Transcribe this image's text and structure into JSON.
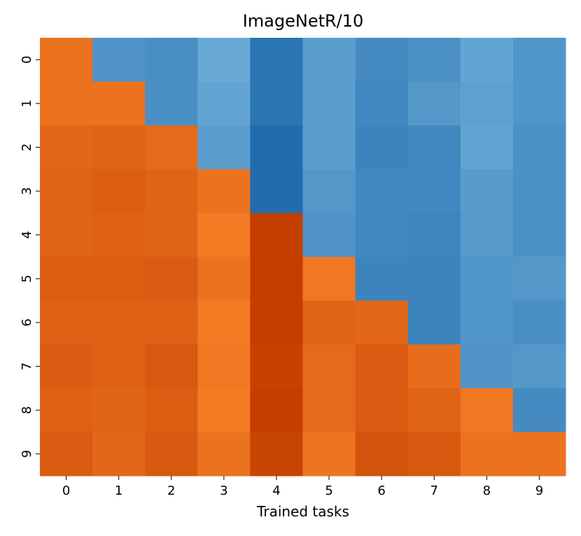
{
  "chart_data": {
    "type": "heatmap",
    "title": "ImageNetR/10",
    "xlabel": "Trained tasks",
    "ylabel": "",
    "x_categories": [
      "0",
      "1",
      "2",
      "3",
      "4",
      "5",
      "6",
      "7",
      "8",
      "9"
    ],
    "y_categories": [
      "0",
      "1",
      "2",
      "3",
      "4",
      "5",
      "6",
      "7",
      "8",
      "9"
    ],
    "colormap": "diverging blue-orange",
    "value_range": [
      0,
      1
    ],
    "values": [
      [
        0.82,
        0.22,
        0.2,
        0.32,
        0.08,
        0.27,
        0.18,
        0.21,
        0.3,
        0.23
      ],
      [
        0.82,
        0.82,
        0.2,
        0.3,
        0.08,
        0.27,
        0.17,
        0.24,
        0.28,
        0.23
      ],
      [
        0.86,
        0.87,
        0.85,
        0.27,
        0.04,
        0.27,
        0.15,
        0.17,
        0.3,
        0.21
      ],
      [
        0.87,
        0.89,
        0.87,
        0.82,
        0.04,
        0.24,
        0.17,
        0.17,
        0.26,
        0.21
      ],
      [
        0.87,
        0.88,
        0.87,
        0.79,
        1.0,
        0.22,
        0.17,
        0.16,
        0.25,
        0.21
      ],
      [
        0.89,
        0.89,
        0.9,
        0.82,
        1.0,
        0.8,
        0.15,
        0.15,
        0.23,
        0.24
      ],
      [
        0.88,
        0.88,
        0.88,
        0.79,
        1.0,
        0.87,
        0.86,
        0.15,
        0.23,
        0.2
      ],
      [
        0.9,
        0.88,
        0.91,
        0.8,
        0.99,
        0.85,
        0.9,
        0.84,
        0.22,
        0.24
      ],
      [
        0.88,
        0.87,
        0.89,
        0.79,
        1.0,
        0.85,
        0.9,
        0.87,
        0.8,
        0.18
      ],
      [
        0.9,
        0.86,
        0.91,
        0.82,
        0.98,
        0.81,
        0.93,
        0.91,
        0.82,
        0.82
      ]
    ],
    "grid": false,
    "colorbar": false
  },
  "colors": {
    "blue_dark": "#1863a8",
    "blue_light": "#6fb0d9",
    "orange_light": "#f47e26",
    "orange_dark": "#c43e00"
  }
}
